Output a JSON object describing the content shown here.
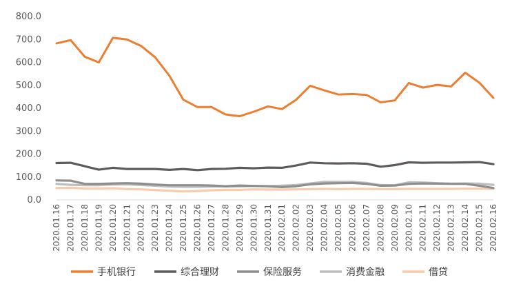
{
  "chart_data": {
    "type": "line",
    "title": "",
    "xlabel": "",
    "ylabel": "",
    "ylim": [
      0,
      800
    ],
    "yticks": [
      "0.0",
      "100.0",
      "200.0",
      "300.0",
      "400.0",
      "500.0",
      "600.0",
      "700.0",
      "800.0"
    ],
    "grid": false,
    "legend_position": "bottom",
    "categories": [
      "2020.01.16",
      "2020.01.17",
      "2020.01.18",
      "2020.01.19",
      "2020.01.20",
      "2020.01.21",
      "2020.01.22",
      "2020.01.23",
      "2020.01.24",
      "2020.01.25",
      "2020.01.26",
      "2020.01.27",
      "2020.01.28",
      "2020.01.29",
      "2020.01.30",
      "2020.01.31",
      "2020.02.01",
      "2020.02.02",
      "2020.02.03",
      "2020.02.04",
      "2020.02.05",
      "2020.02.06",
      "2020.02.07",
      "2020.02.08",
      "2020.02.09",
      "2020.02.10",
      "2020.02.11",
      "2020.02.12",
      "2020.02.13",
      "2020.02.14",
      "2020.02.15",
      "2020.02.16"
    ],
    "series": [
      {
        "name": "手机银行",
        "color": "#ED7D31",
        "values": [
          683,
          697,
          625,
          600,
          707,
          700,
          672,
          622,
          543,
          437,
          405,
          405,
          373,
          365,
          385,
          408,
          396,
          437,
          498,
          478,
          460,
          462,
          458,
          426,
          434,
          510,
          490,
          502,
          495,
          555,
          512,
          445
        ]
      },
      {
        "name": "综合理财",
        "color": "#5F5A5B",
        "values": [
          161,
          162,
          147,
          132,
          140,
          135,
          135,
          135,
          131,
          135,
          130,
          135,
          136,
          140,
          138,
          141,
          140,
          150,
          163,
          160,
          159,
          160,
          158,
          145,
          152,
          164,
          162,
          163,
          163,
          164,
          165,
          156
        ]
      },
      {
        "name": "保险服务",
        "color": "#8E8E8E",
        "values": [
          85,
          84,
          70,
          70,
          72,
          73,
          71,
          67,
          64,
          64,
          64,
          63,
          60,
          63,
          61,
          60,
          56,
          60,
          68,
          72,
          73,
          74,
          70,
          62,
          63,
          70,
          72,
          71,
          70,
          70,
          62,
          52
        ]
      },
      {
        "name": "消费金融",
        "color": "#BEBEBE",
        "values": [
          70,
          66,
          64,
          64,
          67,
          68,
          65,
          62,
          58,
          57,
          57,
          58,
          59,
          59,
          61,
          60,
          62,
          65,
          72,
          79,
          79,
          79,
          74,
          65,
          64,
          77,
          76,
          73,
          71,
          72,
          71,
          66
        ]
      },
      {
        "name": "借贷",
        "color": "#F8CBAD",
        "values": [
          52,
          53,
          50,
          50,
          51,
          47,
          46,
          43,
          40,
          37,
          39,
          42,
          44,
          44,
          46,
          45,
          45,
          46,
          47,
          48,
          47,
          48,
          48,
          47,
          47,
          48,
          48,
          48,
          48,
          49,
          49,
          48
        ]
      }
    ]
  }
}
